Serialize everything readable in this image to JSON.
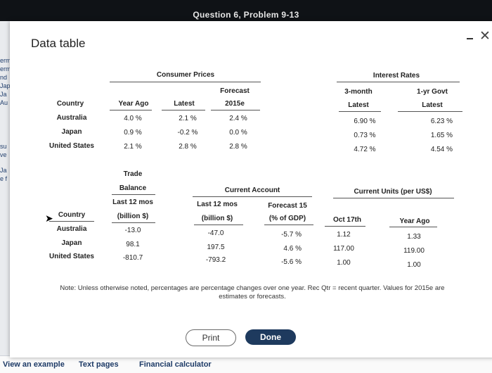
{
  "window": {
    "title": "Question 6, Problem 9-13"
  },
  "background": {
    "side_fragments": [
      "erm",
      "erm",
      "nd",
      "Jap",
      "Ja",
      "Au",
      "su",
      "ve",
      "Ja",
      "e f"
    ],
    "bottom_links": [
      "View an example",
      "Text pages",
      "Financial calculator"
    ]
  },
  "dialog": {
    "title": "Data table",
    "prices_table": {
      "group_header_consumer": "Consumer Prices",
      "group_header_rates": "Interest Rates",
      "col_country": "Country",
      "col_year_ago": "Year Ago",
      "col_latest": "Latest",
      "col_forecast_top": "Forecast",
      "col_forecast_bottom": "2015e",
      "col_3m_top": "3-month",
      "col_3m_bottom": "Latest",
      "col_1y_top": "1-yr Govt",
      "col_1y_bottom": "Latest",
      "rows": [
        {
          "country": "Australia",
          "year_ago": "4.0 %",
          "latest": "2.1 %",
          "forecast": "2.4 %",
          "m3": "6.90 %",
          "y1": "6.23 %"
        },
        {
          "country": "Japan",
          "year_ago": "0.9 %",
          "latest": "-0.2 %",
          "forecast": "0.0 %",
          "m3": "0.73 %",
          "y1": "1.65 %"
        },
        {
          "country": "United States",
          "year_ago": "2.1 %",
          "latest": "2.8 %",
          "forecast": "2.8 %",
          "m3": "4.72 %",
          "y1": "4.54 %"
        }
      ]
    },
    "balance_table": {
      "trade_h1": "Trade",
      "trade_h2": "Balance",
      "trade_h3": "Last 12 mos",
      "trade_h4": "(billion $)",
      "ca_header": "Current Account",
      "ca_last_h1": "Last 12 mos",
      "ca_last_h2": "(billion $)",
      "ca_fc_h1": "Forecast 15",
      "ca_fc_h2": "(% of GDP)",
      "units_header": "Current Units (per US$)",
      "units_oct": "Oct 17th",
      "units_year": "Year Ago",
      "col_country": "Country",
      "rows": [
        {
          "country": "Australia",
          "trade": "-13.0",
          "ca_last": "-47.0",
          "ca_fc": "-5.7 %",
          "oct": "1.12",
          "year": "1.33"
        },
        {
          "country": "Japan",
          "trade": "98.1",
          "ca_last": "197.5",
          "ca_fc": "4.6 %",
          "oct": "117.00",
          "year": "119.00"
        },
        {
          "country": "United States",
          "trade": "-810.7",
          "ca_last": "-793.2",
          "ca_fc": "-5.6 %",
          "oct": "1.00",
          "year": "1.00"
        }
      ]
    },
    "note": "Note: Unless otherwise noted, percentages are percentage changes over one year. Rec Qtr = recent quarter. Values for 2015e are estimates or forecasts.",
    "print_label": "Print",
    "done_label": "Done"
  }
}
